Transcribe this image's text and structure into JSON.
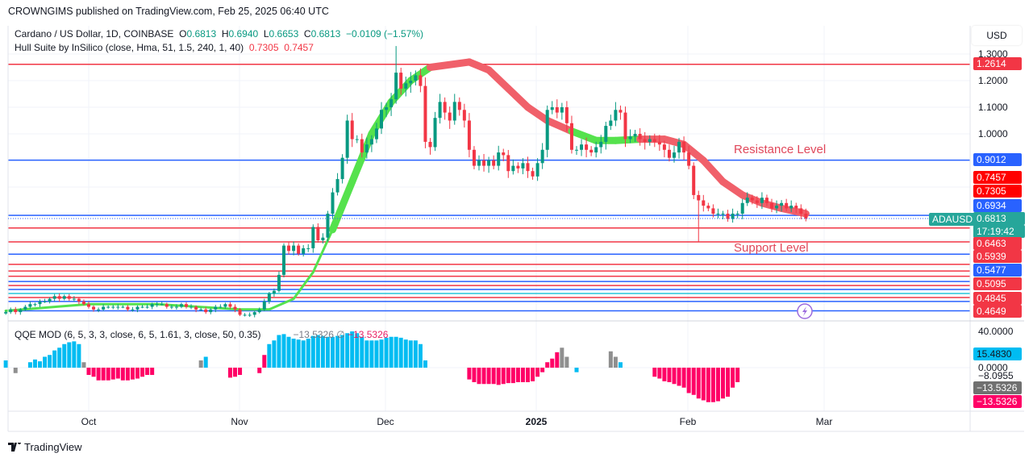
{
  "header": {
    "published": "CROWNGIMS published on TradingView.com, Feb 25, 2025 06:40 UTC"
  },
  "legend": {
    "symbol": "Cardano / US Dollar, 1D, COINBASE",
    "o_label": "O",
    "o": "0.6813",
    "h_label": "H",
    "h": "0.6940",
    "l_label": "L",
    "l": "0.6653",
    "c_label": "C",
    "c": "0.6813",
    "change": "−0.0109 (−1.57%)",
    "hull_name": "Hull Suite by InSilico (close, Hma, 51, 1.5, 240, 1, 40)",
    "hull_v1": "0.7305",
    "hull_v2": "0.7457",
    "qqe_name": "QQE MOD (6, 5, 3, 3, close, 6, 5, 1.61, 3, close, 50, 0.35)",
    "qqe_v1": "−13.5326",
    "qqe_sym": "∅",
    "qqe_v2": "−13.5326"
  },
  "axis": {
    "currency": "USD",
    "price_ticks": [
      "1.3000",
      "1.2000",
      "1.1000",
      "1.0000"
    ],
    "qqe_ticks": [
      "40.0000",
      "0.0000",
      "−8.0955"
    ],
    "months": [
      "Oct",
      "Nov",
      "Dec",
      "2025",
      "Feb",
      "Mar"
    ]
  },
  "price_labels": [
    {
      "text": "1.2614",
      "color": "#f23645"
    },
    {
      "text": "0.9012",
      "color": "#2962ff"
    },
    {
      "text": "0.7457",
      "color": "#ff0000"
    },
    {
      "text": "0.7305",
      "color": "#ff0000"
    },
    {
      "text": "0.6934",
      "color": "#2962ff"
    },
    {
      "text": "0.6813",
      "color": "#26a69a"
    },
    {
      "text": "17:19:42",
      "color": "#26a69a"
    },
    {
      "text": "0.6463",
      "color": "#f23645"
    },
    {
      "text": "0.5939",
      "color": "#f23645"
    },
    {
      "text": "0.5477",
      "color": "#2962ff"
    },
    {
      "text": "0.5095",
      "color": "#f23645"
    },
    {
      "text": "0.4845",
      "color": "#f23645"
    },
    {
      "text": "0.4649",
      "color": "#f23645"
    }
  ],
  "qqe_labels": [
    {
      "text": "15.4830",
      "color": "#00bcf2"
    },
    {
      "text": "−13.5326",
      "color": "#707070"
    },
    {
      "text": "−13.5326",
      "color": "#ff0066"
    }
  ],
  "symbol_tag": "ADAUSD",
  "annotations": {
    "resistance": "Resistance Level",
    "support": "Support Level"
  },
  "footer": {
    "brand": "TradingView"
  },
  "chart_data": {
    "type": "candlestick",
    "title": "Cardano / US Dollar, 1D, COINBASE",
    "start_date": "2024-09-14",
    "ylim": [
      0.31,
      1.36
    ],
    "closes": [
      0.33,
      0.34,
      0.33,
      0.34,
      0.35,
      0.36,
      0.36,
      0.37,
      0.37,
      0.38,
      0.39,
      0.38,
      0.39,
      0.38,
      0.38,
      0.37,
      0.36,
      0.35,
      0.34,
      0.34,
      0.35,
      0.35,
      0.35,
      0.35,
      0.35,
      0.34,
      0.34,
      0.35,
      0.35,
      0.35,
      0.36,
      0.36,
      0.36,
      0.35,
      0.35,
      0.35,
      0.36,
      0.35,
      0.35,
      0.34,
      0.34,
      0.33,
      0.34,
      0.35,
      0.35,
      0.36,
      0.35,
      0.34,
      0.32,
      0.32,
      0.32,
      0.33,
      0.34,
      0.37,
      0.4,
      0.41,
      0.47,
      0.58,
      0.56,
      0.58,
      0.55,
      0.57,
      0.57,
      0.65,
      0.6,
      0.61,
      0.7,
      0.78,
      0.83,
      0.91,
      1.05,
      0.98,
      0.98,
      0.93,
      0.96,
      0.98,
      1.02,
      1.09,
      1.1,
      1.13,
      1.23,
      1.17,
      1.19,
      1.2,
      1.22,
      1.18,
      0.97,
      0.95,
      1.06,
      1.12,
      1.08,
      1.05,
      1.12,
      1.09,
      1.05,
      0.94,
      0.88,
      0.9,
      0.88,
      0.9,
      0.88,
      0.93,
      0.92,
      0.86,
      0.88,
      0.87,
      0.89,
      0.86,
      0.84,
      0.89,
      0.94,
      1.09,
      1.1,
      1.08,
      1.1,
      1.04,
      0.94,
      0.94,
      0.96,
      0.94,
      0.93,
      0.95,
      0.97,
      1.03,
      1.05,
      1.09,
      1.08,
      0.98,
      0.99,
      1.0,
      0.98,
      0.97,
      0.98,
      0.97,
      0.96,
      0.94,
      0.91,
      0.93,
      0.97,
      0.93,
      0.88,
      0.77,
      0.75,
      0.73,
      0.72,
      0.7,
      0.7,
      0.7,
      0.68,
      0.7,
      0.7,
      0.74,
      0.76,
      0.75,
      0.74,
      0.76,
      0.74,
      0.72,
      0.73,
      0.74,
      0.72,
      0.73,
      0.72,
      0.7,
      0.6813
    ],
    "extremes": [
      {
        "day": 80,
        "high": 1.33
      },
      {
        "day": 142,
        "low": 0.595
      }
    ],
    "levels": [
      {
        "price": 1.2614,
        "color": "#f23645"
      },
      {
        "price": 0.9012,
        "color": "#2962ff"
      },
      {
        "price": 0.6934,
        "color": "#2962ff"
      },
      {
        "price": 0.6463,
        "color": "#f23645"
      },
      {
        "price": 0.5939,
        "color": "#f23645"
      },
      {
        "price": 0.5477,
        "color": "#2962ff"
      },
      {
        "price": 0.5095,
        "color": "#f23645"
      },
      {
        "price": 0.4845,
        "color": "#f23645"
      },
      {
        "price": 0.4649,
        "color": "#f23645"
      },
      {
        "price": 0.445,
        "color": "#2962ff"
      },
      {
        "price": 0.43,
        "color": "#f23645"
      },
      {
        "price": 0.415,
        "color": "#2962ff"
      },
      {
        "price": 0.4,
        "color": "#26c6da"
      },
      {
        "price": 0.385,
        "color": "#f23645"
      },
      {
        "price": 0.37,
        "color": "#2962ff"
      },
      {
        "price": 0.335,
        "color": "#2962ff"
      }
    ],
    "hull": [
      [
        0,
        0.335,
        "g"
      ],
      [
        17,
        0.36,
        "g"
      ],
      [
        31,
        0.36,
        "g"
      ],
      [
        48,
        0.34,
        "g"
      ],
      [
        54,
        0.34,
        "g"
      ],
      [
        59,
        0.38,
        "g"
      ],
      [
        63,
        0.48,
        "g"
      ],
      [
        67,
        0.64,
        "g"
      ],
      [
        71,
        0.82,
        "g"
      ],
      [
        75,
        1.0,
        "g"
      ],
      [
        79,
        1.12,
        "g"
      ],
      [
        83,
        1.2,
        "g"
      ],
      [
        87,
        1.25,
        "g"
      ],
      [
        95,
        1.27,
        "r"
      ],
      [
        99,
        1.24,
        "r"
      ],
      [
        103,
        1.17,
        "r"
      ],
      [
        107,
        1.1,
        "r"
      ],
      [
        111,
        1.05,
        "r"
      ],
      [
        116,
        1.01,
        "r"
      ],
      [
        121,
        0.975,
        "g"
      ],
      [
        125,
        0.975,
        "g"
      ],
      [
        130,
        0.98,
        "g"
      ],
      [
        135,
        0.98,
        "r"
      ],
      [
        139,
        0.96,
        "r"
      ],
      [
        143,
        0.9,
        "r"
      ],
      [
        147,
        0.82,
        "r"
      ],
      [
        151,
        0.77,
        "r"
      ],
      [
        155,
        0.74,
        "r"
      ],
      [
        159,
        0.72,
        "r"
      ],
      [
        164,
        0.7,
        "r"
      ]
    ],
    "qqe_ylim": [
      -45,
      50
    ],
    "qqe_hist": [
      8,
      0,
      -6,
      0,
      0,
      6,
      9,
      7,
      12,
      14,
      19,
      22,
      26,
      28,
      29,
      26,
      6,
      -8,
      -10,
      -14,
      -14,
      -14,
      -13,
      -12,
      -14,
      -14,
      -13,
      -12,
      -10,
      -8,
      -8,
      0,
      0,
      0,
      0,
      0,
      -5,
      0,
      0,
      -5,
      8,
      12,
      0,
      0,
      0,
      -10,
      -11,
      -10,
      -8,
      0,
      0,
      -6,
      -6,
      14,
      26,
      30,
      36,
      37,
      34,
      32,
      31,
      30,
      32,
      35,
      36,
      35,
      34,
      34,
      35,
      36,
      38,
      40,
      38,
      34,
      30,
      30,
      30,
      31,
      33,
      34,
      34,
      33,
      31,
      30,
      30,
      26,
      8,
      0,
      0,
      0,
      0,
      0,
      0,
      -6,
      -10,
      -13,
      -16,
      -18,
      -18,
      -18,
      -18,
      -19,
      -18,
      -17,
      -17,
      -16,
      -16,
      -16,
      -15,
      -10,
      -5,
      6,
      10,
      17,
      22,
      12,
      0,
      -5,
      0,
      0,
      0,
      6,
      8,
      18,
      18,
      12,
      6,
      0,
      0,
      0,
      -6,
      -8,
      -8,
      -10,
      -12,
      -15,
      -16,
      -18,
      -20,
      -22,
      -28,
      -30,
      -34,
      -36,
      -38,
      -38,
      -37,
      -34,
      -32,
      -22,
      -16,
      0,
      0,
      0,
      0,
      0,
      0,
      0,
      0,
      0,
      0,
      0,
      -10,
      -14,
      -14
    ],
    "qqe_state": "bngnnbbbbbbbbbbbgpppppppppppppppnnnnnpnngbbnnnppppnnppbbbbbbbbbbbbbbbbbbbbbbbbbbbbbbbbbbgnnnnnnpppppppppppppppppppggbbgnpnnnggbbbgnnnpppppppppppppppppppppppppnnnnnnnnnnnggpp",
    "colors": {
      "up": "#089981",
      "down": "#f23645",
      "hull_up": "#55e24d",
      "hull_down": "#f0606a",
      "qqe_up": "#00bcf2",
      "qqe_down": "#ff0066",
      "qqe_neutral": "#8f8f8f"
    }
  }
}
